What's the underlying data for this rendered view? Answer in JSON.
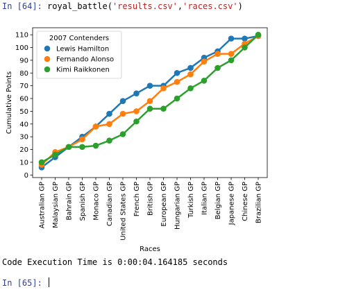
{
  "input_cell": {
    "prompt": "In [64]:",
    "func": "royal_battle(",
    "arg1": "'results.csv'",
    "sep": ",",
    "arg2": "'races.csv'",
    "close": ")"
  },
  "output": {
    "text": "Code Execution Time is 0:00:04.164185 seconds"
  },
  "next_cell": {
    "prompt": "In [65]:"
  },
  "colors": {
    "prompt": "#303f9f",
    "string": "#ba2121"
  },
  "chart_data": {
    "type": "line",
    "xlabel": "Races",
    "ylabel": "Cumulative Points",
    "ylim": [
      0,
      112
    ],
    "yticks": [
      0,
      10,
      20,
      30,
      40,
      50,
      60,
      70,
      80,
      90,
      100,
      110
    ],
    "grid": false,
    "legend_title": "2007 Contenders",
    "legend_position": "top-left",
    "categories": [
      "Australian GP",
      "Malaysian GP",
      "Bahrain GP",
      "Spanish GP",
      "Monaco GP",
      "Canadian GP",
      "United States GP",
      "French GP",
      "British GP",
      "European GP",
      "Hungarian GP",
      "Turkish GP",
      "Italian GP",
      "Belgian GP",
      "Japanese GP",
      "Chinese GP",
      "Brazilian GP"
    ],
    "series": [
      {
        "name": "Lewis Hamilton",
        "color": "#1f77b4",
        "values": [
          6,
          14,
          22,
          30,
          38,
          48,
          58,
          64,
          70,
          70,
          80,
          84,
          92,
          97,
          107,
          107,
          109
        ]
      },
      {
        "name": "Fernando Alonso",
        "color": "#ff7f0e",
        "values": [
          8,
          18,
          22,
          28,
          38,
          40,
          48,
          50,
          58,
          68,
          73,
          79,
          89,
          95,
          95,
          103,
          109
        ]
      },
      {
        "name": "Kimi Raikkonen",
        "color": "#2ca02c",
        "values": [
          10,
          16,
          22,
          22,
          23,
          27,
          32,
          42,
          52,
          52,
          60,
          68,
          74,
          84,
          90,
          100,
          110
        ]
      }
    ]
  }
}
